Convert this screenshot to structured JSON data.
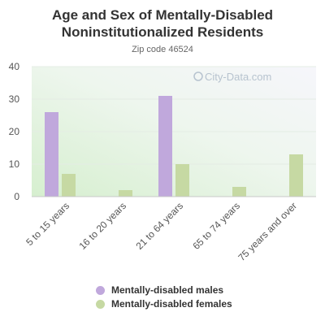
{
  "chart_data": {
    "type": "bar",
    "title": "Age and Sex of Mentally-Disabled Noninstitutionalized Residents",
    "subtitle": "Zip code 46524",
    "watermark": "City-Data.com",
    "categories": [
      "5 to 15 years",
      "16 to 20 years",
      "21 to 64 years",
      "65 to 74 years",
      "75 years and over"
    ],
    "series": [
      {
        "name": "Mentally-disabled males",
        "values": [
          26,
          0,
          31,
          0,
          0
        ],
        "color": "#c0a8dc"
      },
      {
        "name": "Mentally-disabled females",
        "values": [
          7,
          2,
          10,
          3,
          13
        ],
        "color": "#c6d9a3"
      }
    ],
    "ylim": [
      0,
      40
    ],
    "yticks": [
      0,
      10,
      20,
      30,
      40
    ],
    "xlabel": "",
    "ylabel": "",
    "grid": true,
    "legend": "bottom"
  }
}
